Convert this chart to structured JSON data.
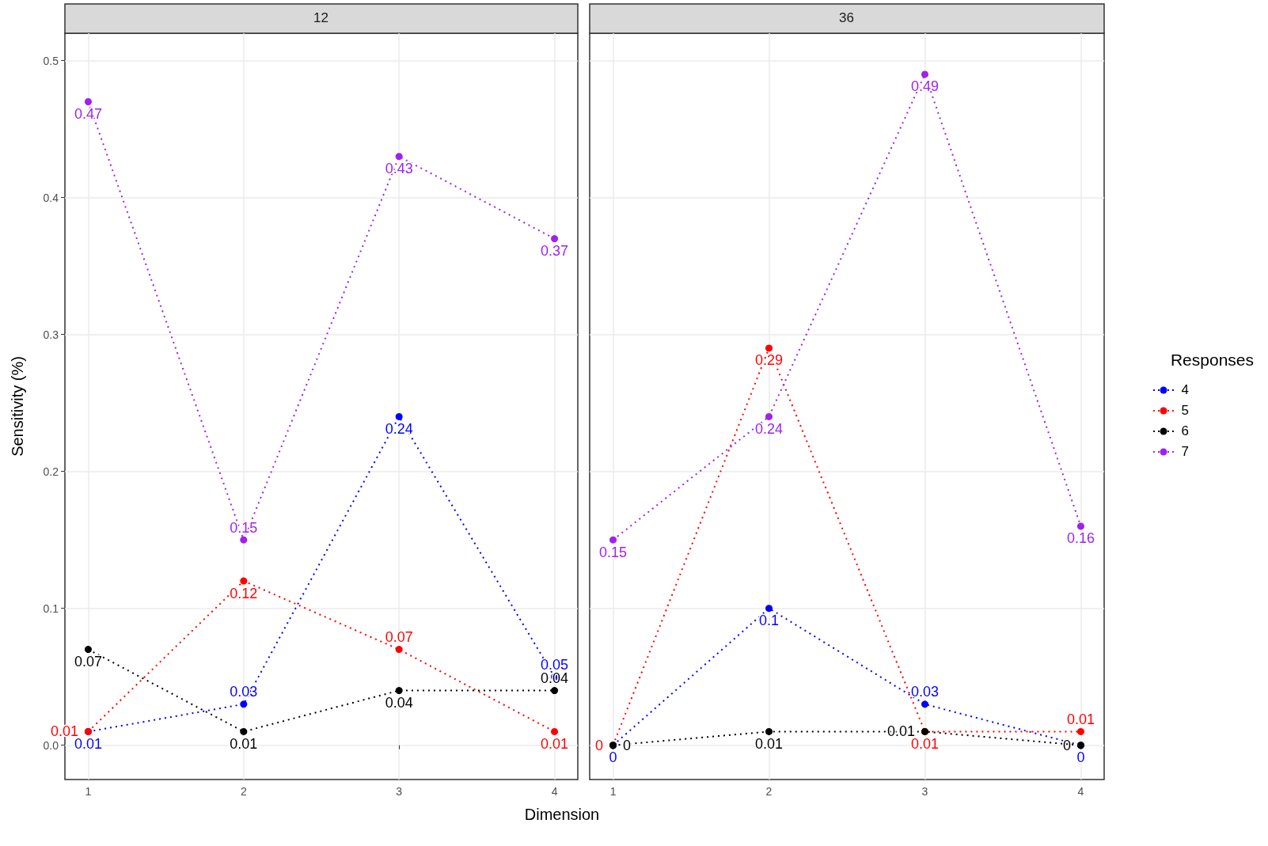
{
  "chart_data": [
    {
      "type": "line",
      "title": "12",
      "xlabel": "Dimension",
      "ylabel": "Sensitivity (%)",
      "x": [
        1,
        2,
        3,
        4
      ],
      "xlim": [
        0.85,
        4.15
      ],
      "xticks": [
        1,
        2,
        3,
        4
      ],
      "ylim": [
        -0.025,
        0.52
      ],
      "yticks": [
        {
          "value": 0,
          "label": "0.0"
        },
        {
          "value": 0.1,
          "label": "0.1"
        },
        {
          "value": 0.2,
          "label": "0.2"
        },
        {
          "value": 0.3,
          "label": "0.3"
        },
        {
          "value": 0.4,
          "label": "0.4"
        },
        {
          "value": 0.5,
          "label": "0.5"
        }
      ],
      "grid": true,
      "marker": "circle",
      "line_style": "dotted",
      "data_labels": true,
      "legend": false,
      "series": [
        {
          "color": "#0000ff",
          "values": [
            0.01,
            0.03,
            0.24,
            0.05
          ]
        },
        {
          "color": "#ff0000",
          "values": [
            0.01,
            0.12,
            0.07,
            0.01
          ]
        },
        {
          "color": "#000000",
          "values": [
            0.07,
            0.01,
            0.04,
            0.04
          ]
        },
        {
          "color": "#a020f0",
          "values": [
            0.47,
            0.15,
            0.43,
            0.37
          ]
        }
      ]
    },
    {
      "type": "line",
      "title": "36",
      "legend_title": "Responses",
      "x": [
        1,
        2,
        3,
        4
      ],
      "xlim": [
        0.85,
        4.15
      ],
      "xticks": [
        1,
        2,
        3,
        4
      ],
      "ylim": [
        -0.025,
        0.52
      ],
      "yticks": [
        {
          "value": 0,
          "label": null
        },
        {
          "value": 0.1,
          "label": null
        },
        {
          "value": 0.2,
          "label": null
        },
        {
          "value": 0.3,
          "label": null
        },
        {
          "value": 0.4,
          "label": null
        },
        {
          "value": 0.5,
          "label": null
        }
      ],
      "tick_labels": "x",
      "grid": true,
      "marker": "circle",
      "line_style": "dotted",
      "data_labels": true,
      "legend": "right",
      "series": [
        {
          "name": "4",
          "color": "#0000ff",
          "values": [
            0,
            0.1,
            0.03,
            0
          ]
        },
        {
          "name": "5",
          "color": "#ff0000",
          "values": [
            0,
            0.29,
            0.01,
            0.01
          ]
        },
        {
          "name": "6",
          "color": "#000000",
          "values": [
            0,
            0.01,
            0.01,
            0
          ]
        },
        {
          "name": "7",
          "color": "#a020f0",
          "values": [
            0.15,
            0.24,
            0.49,
            0.16
          ]
        }
      ]
    }
  ]
}
